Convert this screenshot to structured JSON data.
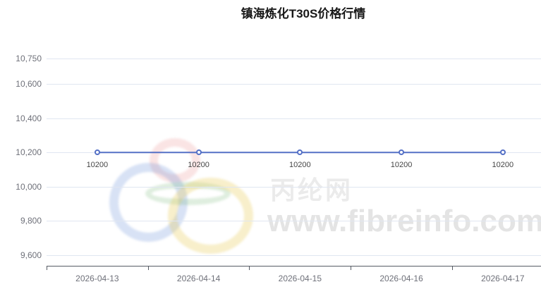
{
  "watermark": {
    "site_name": "丙纶网",
    "site_url": "www.fibreinfo.com",
    "ring_colors": {
      "red": "rgba(221,84,84,0.16)",
      "blue": "rgba(92,133,214,0.24)",
      "green": "rgba(96,168,96,0.20)",
      "yellow": "rgba(233,203,82,0.30)"
    }
  },
  "chart_data": {
    "type": "line",
    "title": "镇海炼化T30S价格行情",
    "categories": [
      "2026-04-13",
      "2026-04-14",
      "2026-04-15",
      "2026-04-16",
      "2026-04-17"
    ],
    "series": [
      {
        "values": [
          10200,
          10200,
          10200,
          10200,
          10200
        ]
      }
    ],
    "data_labels": [
      "10200",
      "10200",
      "10200",
      "10200",
      "10200"
    ],
    "y_ticks": [
      {
        "value": 10750,
        "label": "10,750"
      },
      {
        "value": 10600,
        "label": "10,600"
      },
      {
        "value": 10400,
        "label": "10,400"
      },
      {
        "value": 10200,
        "label": "10,200"
      },
      {
        "value": 10000,
        "label": "10,000"
      },
      {
        "value": 9800,
        "label": "9,800"
      },
      {
        "value": 9600,
        "label": "9,600"
      }
    ],
    "ylim": [
      9540,
      10750
    ],
    "grid": true,
    "legend": false,
    "colors": {
      "line": "#5470c6",
      "point_fill": "#ffffff",
      "grid_line": "#e0e6f1",
      "axis_line": "#565b64",
      "axis_label": "#6e7079",
      "data_label": "#454545",
      "title": "#181818"
    }
  }
}
